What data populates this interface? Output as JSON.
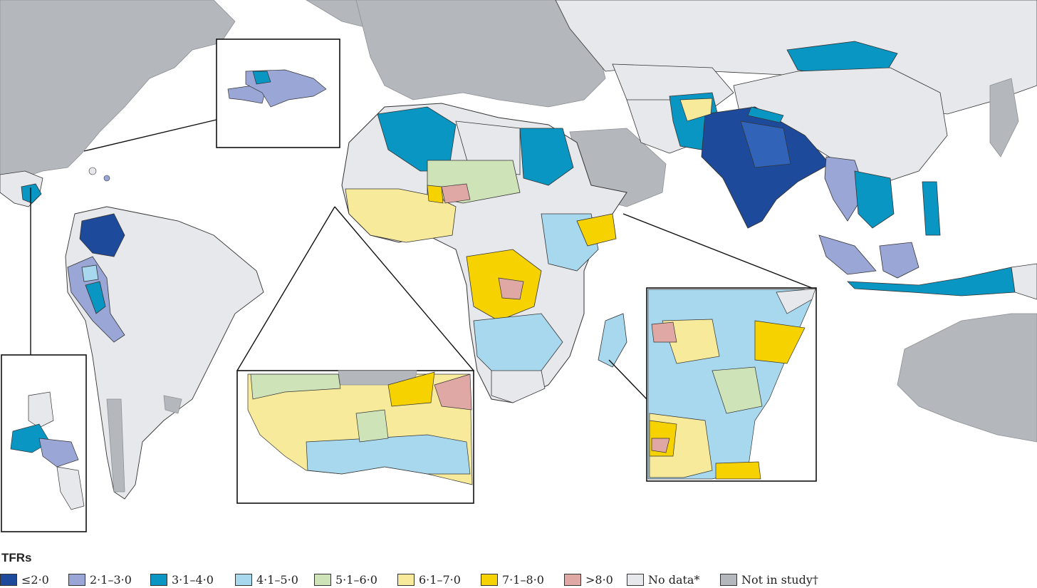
{
  "legend": {
    "title": "TFRs",
    "items": [
      {
        "label": "≤2·0",
        "color": "#1d4a9a"
      },
      {
        "label": "2·1–3·0",
        "color": "#9aa6d6"
      },
      {
        "label": "3·1–4·0",
        "color": "#0a96c2"
      },
      {
        "label": "4·1–5·0",
        "color": "#a8d8ee"
      },
      {
        "label": "5·1–6·0",
        "color": "#cfe3b8"
      },
      {
        "label": "6·1–7·0",
        "color": "#f7ea9a"
      },
      {
        "label": "7·1–8·0",
        "color": "#f6d200"
      },
      {
        "label": ">8·0",
        "color": "#e0a8a4"
      },
      {
        "label": "No data*",
        "color": "#e6e8ec"
      },
      {
        "label": "Not in study†",
        "color": "#b4b8bc"
      }
    ]
  },
  "map": {
    "ocean_color": "#ffffff",
    "no_data_color": "#e6e8ec",
    "not_in_study_color": "#b4b8bc",
    "border_color": "#2a2a2a",
    "insets": [
      "Hispaniola",
      "Central America",
      "West Africa",
      "East Africa"
    ]
  }
}
